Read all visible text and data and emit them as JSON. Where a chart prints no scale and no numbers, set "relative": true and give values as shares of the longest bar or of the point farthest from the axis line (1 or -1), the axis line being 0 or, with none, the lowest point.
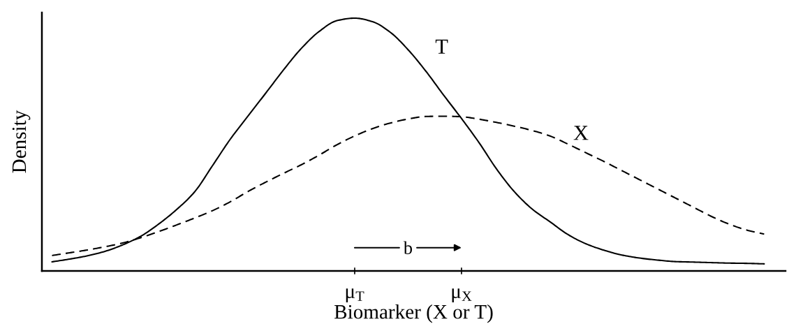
{
  "chart_data": {
    "type": "line",
    "relative": true,
    "xlabel": "Biomarker (X or T)",
    "ylabel": "Density",
    "categories": [
      null,
      null,
      null,
      null,
      null,
      null,
      null,
      null,
      null,
      null,
      null,
      null,
      null,
      null,
      null,
      null,
      null,
      "μ$_{T}$",
      null,
      null,
      null,
      null,
      null,
      "μ$_{X}$",
      null,
      null,
      null,
      null,
      null,
      null,
      null,
      null,
      null,
      null,
      null,
      null,
      null,
      null,
      null,
      null,
      null
    ],
    "tick_labels": "x",
    "annotations": [
      "b"
    ],
    "series": [
      {
        "name": "T",
        "color": "#000000",
        "line_style": "solid",
        "values": [
          0.036,
          0.047,
          0.06,
          0.078,
          0.104,
          0.138,
          0.186,
          0.243,
          0.312,
          0.415,
          0.52,
          0.612,
          0.703,
          0.795,
          0.88,
          0.947,
          0.99,
          1,
          0.986,
          0.944,
          0.875,
          0.79,
          0.695,
          0.603,
          0.506,
          0.4,
          0.311,
          0.243,
          0.193,
          0.143,
          0.107,
          0.082,
          0.063,
          0.051,
          0.043,
          0.037,
          0.035,
          0.033,
          0.031,
          0.03,
          0.028
        ]
      },
      {
        "name": "X",
        "color": "#000000",
        "line_style": "dashed",
        "values": [
          0.061,
          0.072,
          0.083,
          0.096,
          0.111,
          0.132,
          0.156,
          0.182,
          0.209,
          0.238,
          0.273,
          0.314,
          0.351,
          0.386,
          0.42,
          0.458,
          0.499,
          0.534,
          0.563,
          0.585,
          0.601,
          0.611,
          0.612,
          0.61,
          0.6,
          0.587,
          0.572,
          0.555,
          0.533,
          0.501,
          0.467,
          0.433,
          0.397,
          0.361,
          0.325,
          0.289,
          0.253,
          0.217,
          0.186,
          0.162,
          0.146
        ]
      }
    ]
  }
}
